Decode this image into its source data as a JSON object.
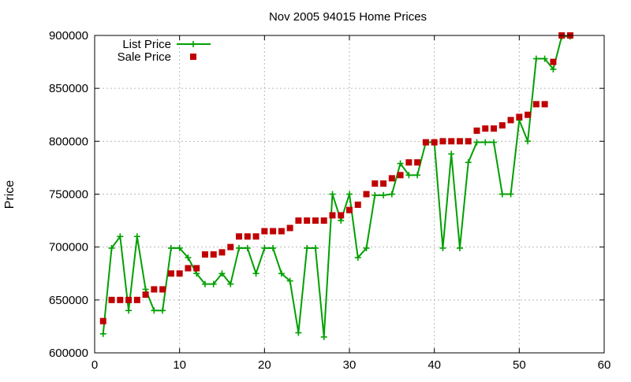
{
  "colors": {
    "list_price": "#00a000",
    "sale_price": "#c00000",
    "grid": "#b8b8b8",
    "axis": "#000000"
  },
  "chart_data": {
    "type": "line",
    "title": "Nov 2005 94015 Home Prices",
    "xlabel": "",
    "ylabel": "Price",
    "xlim": [
      0,
      60
    ],
    "ylim": [
      600000,
      900000
    ],
    "x_ticks": [
      0,
      10,
      20,
      30,
      40,
      50,
      60
    ],
    "y_ticks": [
      600000,
      650000,
      700000,
      750000,
      800000,
      850000,
      900000
    ],
    "x_tick_labels": [
      "0",
      "10",
      "20",
      "30",
      "40",
      "50",
      "60"
    ],
    "y_tick_labels": [
      "600000",
      "650000",
      "700000",
      "750000",
      "800000",
      "850000",
      "900000"
    ],
    "grid": true,
    "legend_position": "top-left",
    "series": [
      {
        "name": "List Price",
        "style": "linespoints",
        "marker": "plus",
        "color": "#00a000",
        "x": [
          1,
          2,
          3,
          4,
          5,
          6,
          7,
          8,
          9,
          10,
          11,
          12,
          13,
          14,
          15,
          16,
          17,
          18,
          19,
          20,
          21,
          22,
          23,
          24,
          25,
          26,
          27,
          28,
          29,
          30,
          31,
          32,
          33,
          34,
          35,
          36,
          37,
          38,
          39,
          40,
          41,
          42,
          43,
          44,
          45,
          46,
          47,
          48,
          49,
          50,
          51,
          52,
          53,
          54,
          55,
          56
        ],
        "values": [
          618000,
          699000,
          710000,
          640000,
          710000,
          660000,
          640000,
          640000,
          699000,
          699000,
          690000,
          675000,
          665000,
          665000,
          675000,
          665000,
          699000,
          699000,
          675000,
          699000,
          699000,
          675000,
          668000,
          619000,
          699000,
          699000,
          615000,
          750000,
          725000,
          750000,
          690000,
          699000,
          749000,
          749000,
          750000,
          779000,
          768000,
          768000,
          799000,
          799000,
          699000,
          788000,
          699000,
          780000,
          799000,
          799000,
          799000,
          750000,
          750000,
          820000,
          800000,
          878000,
          878000,
          868000,
          899000,
          899000
        ]
      },
      {
        "name": "Sale Price",
        "style": "points",
        "marker": "square",
        "color": "#c00000",
        "x": [
          1,
          2,
          3,
          4,
          5,
          6,
          7,
          8,
          9,
          10,
          11,
          12,
          13,
          14,
          15,
          16,
          17,
          18,
          19,
          20,
          21,
          22,
          23,
          24,
          25,
          26,
          27,
          28,
          29,
          30,
          31,
          32,
          33,
          34,
          35,
          36,
          37,
          38,
          39,
          40,
          41,
          42,
          43,
          44,
          45,
          46,
          47,
          48,
          49,
          50,
          51,
          52,
          53,
          54,
          55,
          56
        ],
        "values": [
          630000,
          650000,
          650000,
          650000,
          650000,
          655000,
          660000,
          660000,
          675000,
          675000,
          680000,
          680000,
          693000,
          693000,
          695000,
          700000,
          710000,
          710000,
          710000,
          715000,
          715000,
          715000,
          718000,
          725000,
          725000,
          725000,
          725000,
          730000,
          730000,
          735000,
          740000,
          750000,
          760000,
          760000,
          765000,
          768000,
          780000,
          780000,
          799000,
          799000,
          800000,
          800000,
          800000,
          800000,
          810000,
          812000,
          812000,
          815000,
          820000,
          823000,
          825000,
          835000,
          835000,
          875000,
          900000,
          900000
        ]
      }
    ]
  }
}
